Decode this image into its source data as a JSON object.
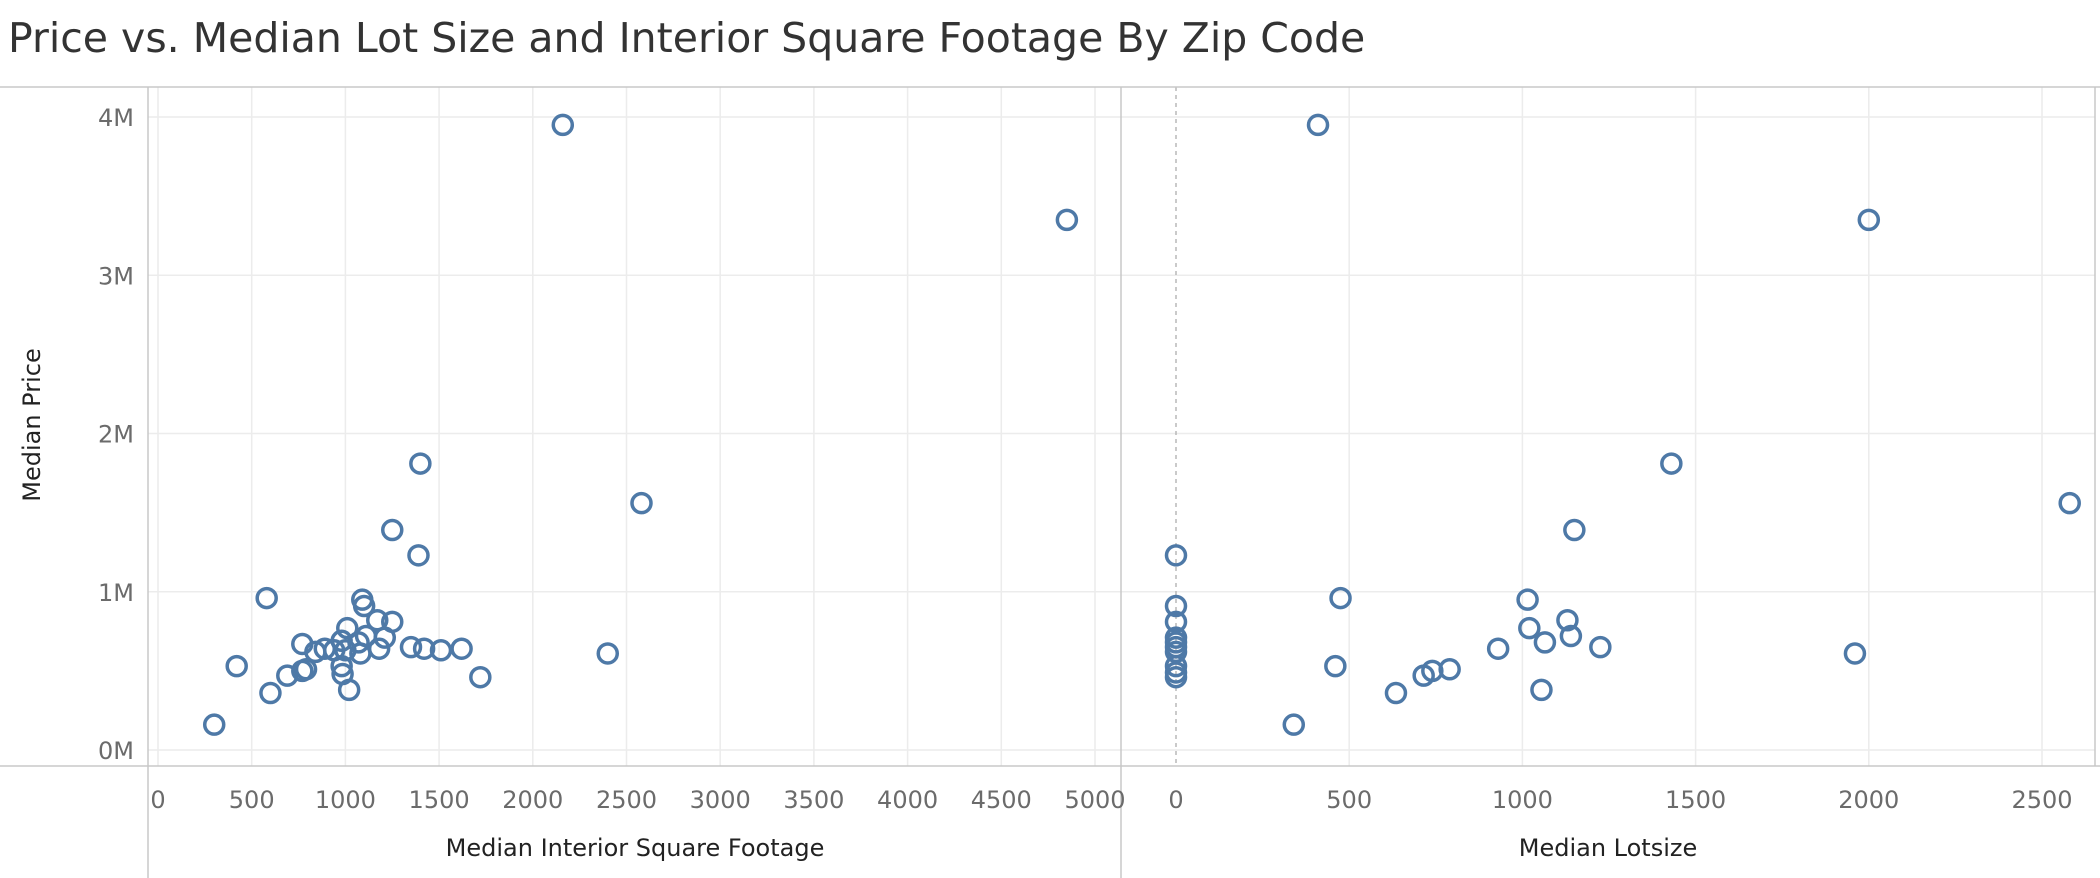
{
  "title": "Price vs. Median Lot Size and Interior Square Footage By Zip Code",
  "colors": {
    "mark": "#4e79a7",
    "grid": "#ececec",
    "axis": "#c8c8c8"
  },
  "chart_data": {
    "type": "scatter",
    "grid": true,
    "legend": "none",
    "y_axis": {
      "label": "Median Price",
      "range": [
        0,
        4000000
      ],
      "ticks": [
        0,
        1000000,
        2000000,
        3000000,
        4000000
      ],
      "tick_labels": [
        "0M",
        "1M",
        "2M",
        "3M",
        "4M"
      ]
    },
    "panels": [
      {
        "xlabel": "Median Interior Square Footage",
        "xlim": [
          0,
          5000
        ],
        "x_ticks": [
          0,
          500,
          1000,
          1500,
          2000,
          2500,
          3000,
          3500,
          4000,
          4500,
          5000
        ],
        "points": [
          {
            "x": 300,
            "y": 160000
          },
          {
            "x": 420,
            "y": 530000
          },
          {
            "x": 600,
            "y": 360000
          },
          {
            "x": 580,
            "y": 960000
          },
          {
            "x": 690,
            "y": 470000
          },
          {
            "x": 770,
            "y": 670000
          },
          {
            "x": 770,
            "y": 500000
          },
          {
            "x": 790,
            "y": 510000
          },
          {
            "x": 840,
            "y": 620000
          },
          {
            "x": 890,
            "y": 640000
          },
          {
            "x": 940,
            "y": 630000
          },
          {
            "x": 980,
            "y": 690000
          },
          {
            "x": 980,
            "y": 530000
          },
          {
            "x": 985,
            "y": 480000
          },
          {
            "x": 1000,
            "y": 630000
          },
          {
            "x": 1010,
            "y": 770000
          },
          {
            "x": 1020,
            "y": 380000
          },
          {
            "x": 1070,
            "y": 680000
          },
          {
            "x": 1080,
            "y": 610000
          },
          {
            "x": 1090,
            "y": 950000
          },
          {
            "x": 1100,
            "y": 910000
          },
          {
            "x": 1110,
            "y": 720000
          },
          {
            "x": 1170,
            "y": 820000
          },
          {
            "x": 1180,
            "y": 640000
          },
          {
            "x": 1210,
            "y": 710000
          },
          {
            "x": 1250,
            "y": 1390000
          },
          {
            "x": 1250,
            "y": 810000
          },
          {
            "x": 1350,
            "y": 650000
          },
          {
            "x": 1390,
            "y": 1230000
          },
          {
            "x": 1400,
            "y": 1810000
          },
          {
            "x": 1420,
            "y": 640000
          },
          {
            "x": 1510,
            "y": 630000
          },
          {
            "x": 1620,
            "y": 640000
          },
          {
            "x": 1720,
            "y": 460000
          },
          {
            "x": 2160,
            "y": 3950000
          },
          {
            "x": 2400,
            "y": 610000
          },
          {
            "x": 2580,
            "y": 1560000
          },
          {
            "x": 4850,
            "y": 3350000
          }
        ]
      },
      {
        "xlabel": "Median Lotsize",
        "xlim": [
          -220,
          2750
        ],
        "x_ticks": [
          0,
          500,
          1000,
          1500,
          2000,
          2500
        ],
        "points": [
          {
            "x": 0,
            "y": 1230000
          },
          {
            "x": 0,
            "y": 910000
          },
          {
            "x": 0,
            "y": 810000
          },
          {
            "x": 0,
            "y": 710000
          },
          {
            "x": 0,
            "y": 680000
          },
          {
            "x": 0,
            "y": 650000
          },
          {
            "x": 0,
            "y": 620000
          },
          {
            "x": 0,
            "y": 530000
          },
          {
            "x": 0,
            "y": 490000
          },
          {
            "x": 0,
            "y": 460000
          },
          {
            "x": 340,
            "y": 160000
          },
          {
            "x": 410,
            "y": 3950000
          },
          {
            "x": 460,
            "y": 530000
          },
          {
            "x": 475,
            "y": 960000
          },
          {
            "x": 635,
            "y": 360000
          },
          {
            "x": 715,
            "y": 470000
          },
          {
            "x": 740,
            "y": 500000
          },
          {
            "x": 790,
            "y": 510000
          },
          {
            "x": 930,
            "y": 640000
          },
          {
            "x": 1015,
            "y": 950000
          },
          {
            "x": 1020,
            "y": 770000
          },
          {
            "x": 1055,
            "y": 380000
          },
          {
            "x": 1065,
            "y": 680000
          },
          {
            "x": 1130,
            "y": 820000
          },
          {
            "x": 1140,
            "y": 720000
          },
          {
            "x": 1150,
            "y": 1390000
          },
          {
            "x": 1225,
            "y": 650000
          },
          {
            "x": 1430,
            "y": 1810000
          },
          {
            "x": 1960,
            "y": 610000
          },
          {
            "x": 2000,
            "y": 3350000
          },
          {
            "x": 2580,
            "y": 1560000
          }
        ]
      }
    ]
  }
}
